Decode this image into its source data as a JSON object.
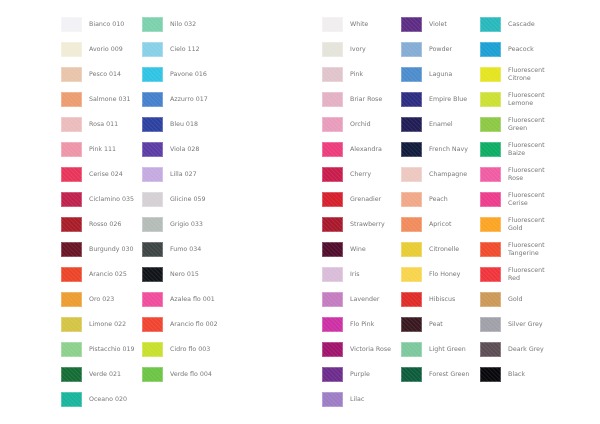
{
  "columns": [
    [
      {
        "label": "Bianco 010",
        "color": "#f2f2f6"
      },
      {
        "label": "Avorio 009",
        "color": "#f0ecd6"
      },
      {
        "label": "Pesco 014",
        "color": "#e8c4aa"
      },
      {
        "label": "Salmone 031",
        "color": "#ec9c70"
      },
      {
        "label": "Rosa 011",
        "color": "#ecbcbc"
      },
      {
        "label": "Pink 111",
        "color": "#ee94a8"
      },
      {
        "label": "Cerise 024",
        "color": "#e8345a"
      },
      {
        "label": "Ciclamino 035",
        "color": "#c0204c"
      },
      {
        "label": "Rosso 026",
        "color": "#a81c28"
      },
      {
        "label": "Burgundy 030",
        "color": "#681424"
      },
      {
        "label": "Arancio 025",
        "color": "#ec4428"
      },
      {
        "label": "Oro 023",
        "color": "#ec9c30"
      },
      {
        "label": "Limone 022",
        "color": "#d4c444"
      },
      {
        "label": "Pistacchio 019",
        "color": "#8cd08c"
      },
      {
        "label": "Verde 021",
        "color": "#146c34"
      },
      {
        "label": "Oceano 020",
        "color": "#18b49c"
      }
    ],
    [
      {
        "label": "Nilo 032",
        "color": "#7cd0ac"
      },
      {
        "label": "Cielo 112",
        "color": "#88d0e8"
      },
      {
        "label": "Pavone 016",
        "color": "#30c4e4"
      },
      {
        "label": "Azzurro 017",
        "color": "#4480cc"
      },
      {
        "label": "Bleu 018",
        "color": "#2c40a0"
      },
      {
        "label": "Viola 028",
        "color": "#5c3ca4"
      },
      {
        "label": "Lilla 027",
        "color": "#c4aae0"
      },
      {
        "label": "Glicine 059",
        "color": "#d4d0d4"
      },
      {
        "label": "Grigio 033",
        "color": "#b4bcb8"
      },
      {
        "label": "Fumo 034",
        "color": "#3c4444"
      },
      {
        "label": "Nero 015",
        "color": "#101418"
      },
      {
        "label": "Azalea flo 001",
        "color": "#f04c9c"
      },
      {
        "label": "Arancio flo 002",
        "color": "#f04430"
      },
      {
        "label": "Cidro flo 003",
        "color": "#c8e02c"
      },
      {
        "label": "Verde flo 004",
        "color": "#6cc444"
      }
    ],
    [
      {
        "label": "White",
        "color": "#f0eeee"
      },
      {
        "label": "Ivory",
        "color": "#e4e4da"
      },
      {
        "label": "Pink",
        "color": "#e0c4cc"
      },
      {
        "label": "Briar Rose",
        "color": "#e4b0c4"
      },
      {
        "label": "Orchid",
        "color": "#e89cbc"
      },
      {
        "label": "Alexandra",
        "color": "#ec3c7c"
      },
      {
        "label": "Cherry",
        "color": "#c81c4c"
      },
      {
        "label": "Grenadier",
        "color": "#d4202c"
      },
      {
        "label": "Strawberry",
        "color": "#a8182c"
      },
      {
        "label": "Wine",
        "color": "#500c2c"
      },
      {
        "label": "Iris",
        "color": "#d8bcd8"
      },
      {
        "label": "Lavender",
        "color": "#c47cc0"
      },
      {
        "label": "Flo Pink",
        "color": "#cc30a4"
      },
      {
        "label": "Victoria Rose",
        "color": "#a0146c"
      },
      {
        "label": "Purple",
        "color": "#6c2c8c"
      },
      {
        "label": "Lilac",
        "color": "#9c7cc4"
      }
    ],
    [
      {
        "label": "Violet",
        "color": "#5c2c84"
      },
      {
        "label": "Powder",
        "color": "#84acd4"
      },
      {
        "label": "Laguna",
        "color": "#4c8ccc"
      },
      {
        "label": "Empire Blue",
        "color": "#2c2c80"
      },
      {
        "label": "Enamel",
        "color": "#201c54"
      },
      {
        "label": "French Navy",
        "color": "#101c3c"
      },
      {
        "label": "Champagne",
        "color": "#ecc8c0"
      },
      {
        "label": "Peach",
        "color": "#f0a888"
      },
      {
        "label": "Apricot",
        "color": "#f08c5c"
      },
      {
        "label": "Citronelle",
        "color": "#e8cc34"
      },
      {
        "label": "Flo Honey",
        "color": "#f8d44c"
      },
      {
        "label": "Hibiscus",
        "color": "#e02c28"
      },
      {
        "label": "Peat",
        "color": "#381820"
      },
      {
        "label": "Light Green",
        "color": "#7cc89c"
      },
      {
        "label": "Forest Green",
        "color": "#0c5c3c"
      }
    ],
    [
      {
        "label": "Cascade",
        "color": "#28b8bc"
      },
      {
        "label": "Peacock",
        "color": "#1ca0d4"
      },
      {
        "label": "Fluorescent Citrone",
        "color": "#e4e420"
      },
      {
        "label": "Fluorescent Lemone",
        "color": "#cce034"
      },
      {
        "label": "Fluorescent Green",
        "color": "#8cc844"
      },
      {
        "label": "Fluorescent Baize",
        "color": "#0cac64"
      },
      {
        "label": "Fluorescent Rose",
        "color": "#f05ca4"
      },
      {
        "label": "Fluorescent Cerise",
        "color": "#ec3c8c"
      },
      {
        "label": "Fluorescent Gold",
        "color": "#fca424"
      },
      {
        "label": "Fluorescent Tangerine",
        "color": "#f04c2c"
      },
      {
        "label": "Fluorescent Red",
        "color": "#f0343c"
      },
      {
        "label": "Gold",
        "color": "#cc9858"
      },
      {
        "label": "Silver Grey",
        "color": "#a0a0a8"
      },
      {
        "label": "Deark Grey",
        "color": "#5c4c54"
      },
      {
        "label": "Black",
        "color": "#08080c"
      }
    ]
  ]
}
